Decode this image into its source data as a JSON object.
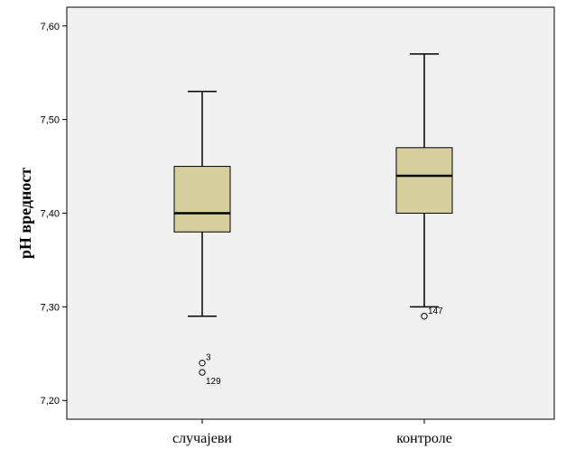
{
  "chart_data": {
    "type": "boxplot",
    "ylabel": "pH вредност",
    "xlabel": "",
    "ylim": [
      7.18,
      7.62
    ],
    "yticks": [
      7.2,
      7.3,
      7.4,
      7.5,
      7.6
    ],
    "ytick_labels": [
      "7,20",
      "7,30",
      "7,40",
      "7,50",
      "7,60"
    ],
    "grid": false,
    "colors": {
      "plot_background": "#f0f0f0",
      "box_fill": "#d4cf9c",
      "stroke": "#000000"
    },
    "categories": [
      "случајеви",
      "контроле"
    ],
    "boxes": [
      {
        "category": "случајеви",
        "whisker_low": 7.29,
        "q1": 7.38,
        "median": 7.4,
        "q3": 7.45,
        "whisker_high": 7.53,
        "outliers": [
          {
            "label": "3",
            "value": 7.24
          },
          {
            "label": "129",
            "value": 7.23
          }
        ]
      },
      {
        "category": "контроле",
        "whisker_low": 7.3,
        "q1": 7.4,
        "median": 7.44,
        "q3": 7.47,
        "whisker_high": 7.57,
        "outliers": [
          {
            "label": "147",
            "value": 7.29
          }
        ]
      }
    ]
  }
}
